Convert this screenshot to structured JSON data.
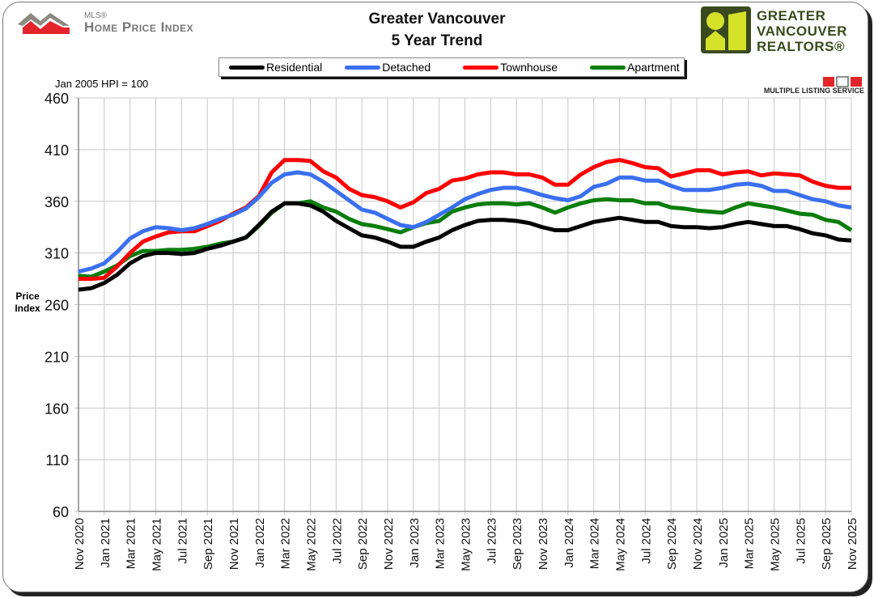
{
  "header": {
    "logo_left": {
      "small": "MLS®",
      "main": "Home Price Index"
    },
    "logo_right": {
      "text": "GREATER VANCOUVER REALTORS®",
      "badge": "MLS",
      "badge_caption": "MULTIPLE LISTING SERVICE"
    },
    "note": "Jan 2005 HPI = 100"
  },
  "chart_data": {
    "type": "line",
    "title": [
      "Greater Vancouver",
      "5 Year Trend"
    ],
    "ylabel": "Price Index",
    "xlabel": "",
    "ylim": [
      60,
      460
    ],
    "yticks": [
      60,
      110,
      160,
      210,
      260,
      310,
      360,
      410,
      460
    ],
    "grid": true,
    "legend_position": "top",
    "x": [
      "Nov 2020",
      "Dec 2020",
      "Jan 2021",
      "Feb 2021",
      "Mar 2021",
      "Apr 2021",
      "May 2021",
      "Jun 2021",
      "Jul 2021",
      "Aug 2021",
      "Sep 2021",
      "Oct 2021",
      "Nov 2021",
      "Dec 2021",
      "Jan 2022",
      "Feb 2022",
      "Mar 2022",
      "Apr 2022",
      "May 2022",
      "Jun 2022",
      "Jul 2022",
      "Aug 2022",
      "Sep 2022",
      "Oct 2022",
      "Nov 2022",
      "Dec 2022",
      "Jan 2023",
      "Feb 2023",
      "Mar 2023",
      "Apr 2023",
      "May 2023",
      "Jun 2023",
      "Jul 2023",
      "Aug 2023",
      "Sep 2023",
      "Oct 2023",
      "Nov 2023",
      "Dec 2023",
      "Jan 2024",
      "Feb 2024",
      "Mar 2024",
      "Apr 2024",
      "May 2024",
      "Jun 2024",
      "Jul 2024",
      "Aug 2024",
      "Sep 2024",
      "Oct 2024",
      "Nov 2024",
      "Dec 2024",
      "Jan 2025",
      "Feb 2025",
      "Mar 2025",
      "Apr 2025",
      "May 2025",
      "Jun 2025",
      "Jul 2025",
      "Aug 2025",
      "Sep 2025",
      "Oct 2025",
      "Nov 2025"
    ],
    "xtick_labels": [
      "Nov 2020",
      "Jan 2021",
      "Mar 2021",
      "May 2021",
      "Jul 2021",
      "Sep 2021",
      "Nov 2021",
      "Jan 2022",
      "Mar 2022",
      "May 2022",
      "Jul 2022",
      "Sep 2022",
      "Nov 2022",
      "Jan 2023",
      "Mar 2023",
      "May 2023",
      "Jul 2023",
      "Sep 2023",
      "Nov 2023",
      "Jan 2024",
      "Mar 2024",
      "May 2024",
      "Jul 2024",
      "Sep 2024",
      "Nov 2024",
      "Jan 2025",
      "Mar 2025",
      "May 2025",
      "Jul 2025",
      "Sep 2025",
      "Nov 2025"
    ],
    "series": [
      {
        "name": "Residential",
        "color": "#000000",
        "values": [
          274.5,
          276,
          281,
          289,
          300,
          307,
          310,
          310,
          309,
          310,
          314,
          317,
          321,
          325,
          337,
          350,
          358,
          358,
          356,
          350,
          341,
          334,
          327,
          325,
          321,
          316,
          316,
          321,
          325,
          332,
          337,
          341,
          342,
          342,
          341,
          339,
          335,
          332,
          332,
          336,
          340,
          342,
          344,
          342,
          340,
          340,
          336,
          335,
          335,
          334,
          335,
          338,
          340,
          338,
          336,
          336,
          333,
          329,
          327,
          323,
          322
        ]
      },
      {
        "name": "Detached",
        "color": "#3a6ff0",
        "values": [
          292,
          295,
          300,
          311,
          324,
          331,
          335,
          334,
          332,
          334,
          338,
          343,
          347,
          353,
          364,
          378,
          386,
          388,
          386,
          379,
          370,
          361,
          352,
          349,
          343,
          337,
          335,
          340,
          347,
          354,
          362,
          367,
          371,
          373,
          373,
          370,
          366,
          363,
          361,
          365,
          374,
          377,
          383,
          383,
          380,
          380,
          375,
          371,
          371,
          371,
          373,
          376,
          377,
          375,
          370,
          370,
          366,
          362,
          360,
          356,
          354
        ]
      },
      {
        "name": "Townhouse",
        "color": "#ff0000",
        "values": [
          285,
          285,
          286,
          297,
          310,
          321,
          326,
          330,
          331,
          331,
          336,
          341,
          348,
          354,
          365,
          388,
          400,
          400,
          399,
          389,
          383,
          372,
          366,
          364,
          360,
          354,
          359,
          368,
          372,
          380,
          382,
          386,
          388,
          388,
          386,
          386,
          383,
          376,
          376,
          386,
          393,
          398,
          400,
          397,
          393,
          392,
          384,
          387,
          390,
          390,
          386,
          388,
          389,
          385,
          387,
          386,
          385,
          379,
          375,
          373,
          373
        ]
      },
      {
        "name": "Apartment",
        "color": "#0a7d0a",
        "values": [
          288,
          287,
          292,
          298,
          307,
          312,
          312,
          313,
          313,
          314,
          316,
          319,
          321,
          325,
          336,
          349,
          358,
          358,
          360,
          354,
          350,
          343,
          338,
          336,
          333,
          330,
          335,
          339,
          341,
          350,
          354,
          357,
          358,
          358,
          357,
          358,
          354,
          349,
          354,
          358,
          361,
          362,
          361,
          361,
          358,
          358,
          354,
          353,
          351,
          350,
          349,
          354,
          358,
          356,
          354,
          351,
          348,
          347,
          342,
          340,
          332
        ]
      }
    ]
  }
}
